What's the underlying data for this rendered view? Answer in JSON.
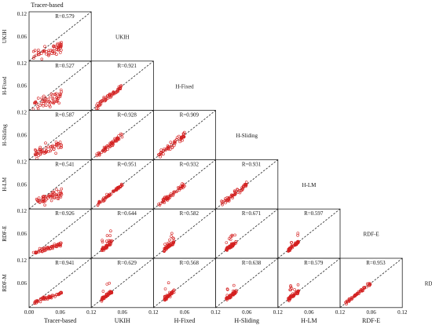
{
  "chart_data": {
    "type": "scatter",
    "layout": "lower-triangular scatter-plot matrix",
    "variables": [
      "Tracer-based",
      "UKIH",
      "H-Fixed",
      "H-Sliding",
      "H-LM",
      "RDF-E",
      "RDF-M"
    ],
    "row_variables": [
      "UKIH",
      "H-Fixed",
      "H-Sliding",
      "H-LM",
      "RDF-E",
      "RDF-M"
    ],
    "col_variables": [
      "Tracer-based",
      "UKIH",
      "H-Fixed",
      "H-Sliding",
      "H-LM",
      "RDF-E"
    ],
    "top_title": "Tracer-based",
    "axis_range": [
      0,
      0.12
    ],
    "x_ticks": [
      "0.00",
      "0.06",
      "0.12"
    ],
    "y_ticks": [
      "0.12",
      "0.06"
    ],
    "reference_line": "1:1 dashed line",
    "marker": "open circle",
    "marker_color": "#d42020",
    "correlations": [
      [
        "R=0.579"
      ],
      [
        "R=0.527",
        "R=0.921"
      ],
      [
        "R=0.587",
        "R=0.928",
        "R=0.909"
      ],
      [
        "R=0.541",
        "R=0.951",
        "R=0.932",
        "R=0.931"
      ],
      [
        "R=0.926",
        "R=0.644",
        "R=0.582",
        "R=0.671",
        "R=0.597"
      ],
      [
        "R=0.941",
        "R=0.629",
        "R=0.568",
        "R=0.638",
        "R=0.579",
        "R=0.953"
      ]
    ],
    "diagonal_labels": [
      "UKIH",
      "H-Fixed",
      "H-Sliding",
      "H-LM",
      "RDF-E",
      "RDF-M"
    ]
  }
}
